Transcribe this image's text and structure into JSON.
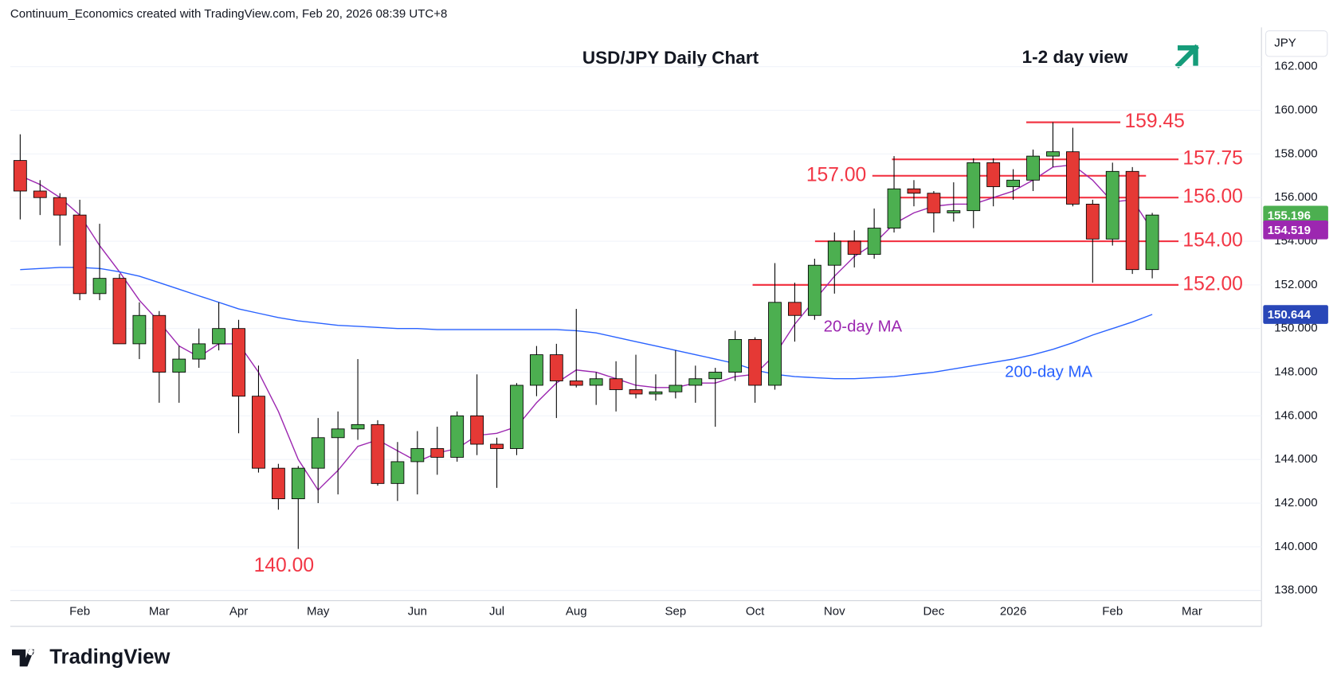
{
  "chart_data": {
    "type": "candlestick",
    "header": "Continuum_Economics created with TradingView.com, Feb 20, 2026 08:39 UTC+8",
    "title": "USD/JPY Daily Chart",
    "subtitle": "1-2 day view",
    "annotation": "140.00",
    "currency": "JPY",
    "brand": "TradingView",
    "categories": [
      null,
      null,
      null,
      "Feb",
      null,
      null,
      null,
      "Mar",
      null,
      null,
      null,
      "Apr",
      null,
      null,
      null,
      "May",
      null,
      null,
      null,
      null,
      "Jun",
      null,
      null,
      null,
      "Jul",
      null,
      null,
      null,
      "Aug",
      null,
      null,
      null,
      null,
      "Sep",
      null,
      null,
      null,
      "Oct",
      null,
      null,
      null,
      "Nov",
      null,
      null,
      null,
      null,
      "Dec",
      null,
      null,
      null,
      "2026",
      null,
      null,
      null,
      null,
      "Feb",
      null,
      null,
      null,
      "Mar",
      null,
      null,
      null
    ],
    "open": [
      157.7,
      156.3,
      156.0,
      155.2,
      151.6,
      152.3,
      149.3,
      150.6,
      148.0,
      148.6,
      149.3,
      150.0,
      146.9,
      143.6,
      142.2,
      143.6,
      145.0,
      145.4,
      145.6,
      142.9,
      143.9,
      144.5,
      144.1,
      146.0,
      144.7,
      144.5,
      147.4,
      148.8,
      147.6,
      147.4,
      147.7,
      147.2,
      147.0,
      147.1,
      147.4,
      147.7,
      148.0,
      149.5,
      147.4,
      151.2,
      150.6,
      152.9,
      154.0,
      153.4,
      154.6,
      156.4,
      156.2,
      155.3,
      155.4,
      157.6,
      156.5,
      156.8,
      157.9,
      158.1,
      155.7,
      154.1,
      157.2,
      152.7,
      null,
      null,
      null,
      null,
      null
    ],
    "high": [
      158.9,
      156.8,
      156.2,
      155.9,
      154.8,
      152.5,
      151.2,
      150.8,
      149.2,
      150.0,
      151.2,
      150.4,
      148.3,
      143.8,
      143.7,
      145.9,
      146.2,
      148.6,
      145.8,
      144.8,
      145.3,
      145.5,
      146.2,
      147.9,
      145.0,
      147.5,
      149.2,
      149.3,
      150.9,
      148.0,
      148.5,
      148.8,
      147.9,
      149.0,
      148.3,
      148.2,
      149.9,
      149.6,
      153.0,
      152.1,
      153.2,
      154.4,
      154.5,
      155.5,
      157.9,
      156.8,
      156.3,
      156.7,
      157.8,
      157.8,
      157.3,
      158.2,
      159.45,
      159.2,
      155.9,
      157.6,
      157.4,
      155.3,
      null,
      null,
      null,
      null,
      null
    ],
    "low": [
      155.0,
      155.2,
      153.8,
      151.3,
      151.3,
      149.3,
      148.6,
      146.6,
      146.6,
      148.2,
      149.0,
      145.2,
      143.4,
      141.7,
      139.9,
      142.0,
      142.4,
      144.9,
      142.8,
      142.1,
      142.4,
      143.3,
      143.9,
      144.2,
      142.7,
      144.2,
      146.9,
      145.9,
      147.3,
      146.5,
      146.2,
      146.8,
      146.7,
      146.8,
      146.6,
      145.5,
      147.6,
      146.6,
      147.2,
      149.4,
      150.4,
      151.6,
      152.8,
      153.2,
      154.4,
      155.6,
      154.4,
      154.9,
      154.6,
      155.6,
      155.9,
      156.3,
      157.4,
      155.6,
      152.1,
      153.8,
      152.5,
      152.3,
      null,
      null,
      null,
      null,
      null
    ],
    "close": [
      156.3,
      156.0,
      155.2,
      151.6,
      152.3,
      149.3,
      150.6,
      148.0,
      148.6,
      149.3,
      150.0,
      146.9,
      143.6,
      142.2,
      143.6,
      145.0,
      145.4,
      145.6,
      142.9,
      143.9,
      144.5,
      144.1,
      146.0,
      144.7,
      144.5,
      147.4,
      148.8,
      147.6,
      147.4,
      147.7,
      147.2,
      147.0,
      147.1,
      147.4,
      147.7,
      148.0,
      149.5,
      147.4,
      151.2,
      150.6,
      152.9,
      154.0,
      153.4,
      154.6,
      156.4,
      156.2,
      155.3,
      155.4,
      157.6,
      156.5,
      156.8,
      157.9,
      158.1,
      155.7,
      154.1,
      157.2,
      152.7,
      155.2,
      null,
      null,
      null,
      null,
      null
    ],
    "up_color": "#4caf50",
    "down_color": "#e53935",
    "series": [
      {
        "name": "20-day MA",
        "color": "#9c27b0",
        "values": [
          157.0,
          156.6,
          156.0,
          155.2,
          153.8,
          152.6,
          151.3,
          150.3,
          149.2,
          148.7,
          149.3,
          149.3,
          148.0,
          146.2,
          144.0,
          142.6,
          143.5,
          144.6,
          144.9,
          144.4,
          143.9,
          144.3,
          144.5,
          145.1,
          145.2,
          145.5,
          146.6,
          147.5,
          148.1,
          148.0,
          147.7,
          147.4,
          147.3,
          147.3,
          147.5,
          147.5,
          147.8,
          147.9,
          148.8,
          150.2,
          151.3,
          152.4,
          153.3,
          153.9,
          154.8,
          155.3,
          155.6,
          155.7,
          155.7,
          156.0,
          156.3,
          156.8,
          157.4,
          157.5,
          156.8,
          155.8,
          155.9,
          154.5,
          null,
          null,
          null,
          null,
          null
        ]
      },
      {
        "name": "200-day MA",
        "color": "#2962ff",
        "values": [
          152.7,
          152.75,
          152.8,
          152.8,
          152.75,
          152.6,
          152.4,
          152.1,
          151.8,
          151.5,
          151.2,
          150.9,
          150.7,
          150.5,
          150.35,
          150.25,
          150.15,
          150.1,
          150.05,
          150.0,
          150.0,
          149.95,
          149.95,
          149.95,
          149.95,
          149.95,
          149.95,
          149.95,
          149.9,
          149.8,
          149.6,
          149.4,
          149.2,
          149.0,
          148.8,
          148.6,
          148.4,
          148.1,
          147.9,
          147.8,
          147.75,
          147.7,
          147.7,
          147.75,
          147.8,
          147.9,
          148.0,
          148.15,
          148.3,
          148.45,
          148.6,
          148.8,
          149.05,
          149.35,
          149.7,
          150.0,
          150.3,
          150.644,
          null,
          null,
          null,
          null,
          null
        ]
      }
    ],
    "levels": [
      {
        "value": 159.45,
        "label": "159.45"
      },
      {
        "value": 157.75,
        "label": "157.75"
      },
      {
        "value": 157.0,
        "label": "157.00"
      },
      {
        "value": 156.0,
        "label": "156.00"
      },
      {
        "value": 154.0,
        "label": "154.00"
      },
      {
        "value": 152.0,
        "label": "152.00"
      }
    ],
    "level_color": "#f23645",
    "price_tags": [
      {
        "value": 155.196,
        "color": "#4caf50"
      },
      {
        "value": 154.519,
        "color": "#9c27b0"
      },
      {
        "value": 150.644,
        "color": "#2947b8"
      }
    ],
    "ylim": [
      137.53,
      163.8
    ],
    "yticks": [
      {
        "value": 138,
        "label": "138.000"
      },
      {
        "value": 140,
        "label": "140.000"
      },
      {
        "value": 142,
        "label": "142.000"
      },
      {
        "value": 144,
        "label": "144.000"
      },
      {
        "value": 146,
        "label": "146.000"
      },
      {
        "value": 148,
        "label": "148.000"
      },
      {
        "value": 150,
        "label": "150.000"
      },
      {
        "value": 152,
        "label": "152.000"
      },
      {
        "value": 154,
        "label": "154.000"
      },
      {
        "value": 156,
        "label": "156.000"
      },
      {
        "value": 158,
        "label": "158.000"
      },
      {
        "value": 160,
        "label": "160.000"
      },
      {
        "value": 162,
        "label": "162.000"
      }
    ],
    "grid": true
  }
}
